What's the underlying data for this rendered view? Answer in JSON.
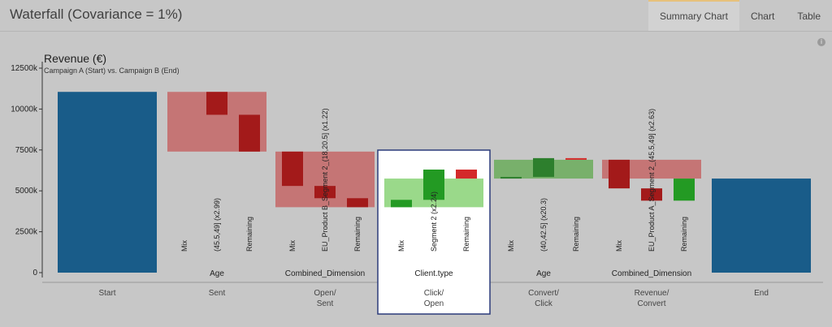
{
  "header": {
    "title": "Waterfall (Covariance = 1%)",
    "tabs": [
      "Summary Chart",
      "Chart",
      "Table"
    ],
    "active_tab": 0
  },
  "chart_data": {
    "type": "bar",
    "title": "Revenue (€)",
    "subtitle": "Campaign A (Start) vs. Campaign B (End)",
    "y_ticks": [
      "0",
      "2500k",
      "5000k",
      "7500k",
      "10000k",
      "12500k"
    ],
    "ylim": [
      0,
      12500
    ],
    "colors": {
      "total": "#195c89",
      "decrease_box": "#c57575",
      "decrease": "#a31a1a",
      "decrease_bright": "#d42a2a",
      "increase_box": "#9ad98a",
      "increase": "#239a23",
      "increase_box_muted": "#78b06b",
      "increase_muted": "#2d7f2d"
    },
    "categories": [
      {
        "label": "Start"
      },
      {
        "label": "Sent",
        "dimension": "Age"
      },
      {
        "label": "Open/ Sent",
        "dimension": "Combined_Dimension"
      },
      {
        "label": "Click/ Open",
        "dimension": "Client.type",
        "highlighted": true
      },
      {
        "label": "Convert/ Click",
        "dimension": "Age"
      },
      {
        "label": "Revenue/ Convert",
        "dimension": "Combined_Dimension"
      },
      {
        "label": "End"
      }
    ],
    "totals": [
      {
        "category": 0,
        "value": 11050
      },
      {
        "category": 6,
        "value": 5750
      }
    ],
    "steps": [
      {
        "category": 1,
        "from": 11050,
        "to": 7400,
        "effect": "decrease",
        "components": [
          {
            "label": "Mix",
            "from": 11050,
            "to": 11050,
            "effect": "decrease"
          },
          {
            "label": "(45.5,49] (x2.99)",
            "from": 11050,
            "to": 9650,
            "effect": "decrease"
          },
          {
            "label": "Remaining",
            "from": 9650,
            "to": 7400,
            "effect": "decrease"
          }
        ]
      },
      {
        "category": 2,
        "from": 7400,
        "to": 4000,
        "effect": "decrease",
        "components": [
          {
            "label": "Mix",
            "from": 7400,
            "to": 5300,
            "effect": "decrease"
          },
          {
            "label": "EU_Product B_Segment 2_(18,20.5] (x1.22)",
            "from": 5300,
            "to": 4550,
            "effect": "decrease"
          },
          {
            "label": "Remaining",
            "from": 4550,
            "to": 4000,
            "effect": "decrease"
          }
        ]
      },
      {
        "category": 3,
        "from": 4000,
        "to": 5750,
        "effect": "increase",
        "components": [
          {
            "label": "Mix",
            "from": 4000,
            "to": 4450,
            "effect": "increase"
          },
          {
            "label": "Segment 2 (x2.24)",
            "from": 4450,
            "to": 6300,
            "effect": "increase"
          },
          {
            "label": "Remaining",
            "from": 6300,
            "to": 5750,
            "effect": "decrease"
          }
        ]
      },
      {
        "category": 4,
        "from": 5750,
        "to": 6900,
        "effect": "increase",
        "components": [
          {
            "label": "Mix",
            "from": 5750,
            "to": 5850,
            "effect": "increase"
          },
          {
            "label": "(40,42.5] (x20.3)",
            "from": 5850,
            "to": 7000,
            "effect": "increase"
          },
          {
            "label": "Remaining",
            "from": 7000,
            "to": 6900,
            "effect": "decrease"
          }
        ]
      },
      {
        "category": 5,
        "from": 6900,
        "to": 5750,
        "effect": "decrease",
        "components": [
          {
            "label": "Mix",
            "from": 6900,
            "to": 5150,
            "effect": "decrease"
          },
          {
            "label": "EU_Product A_Segment 2_(45.5,49] (x2.63)",
            "from": 5150,
            "to": 4400,
            "effect": "decrease"
          },
          {
            "label": "Remaining",
            "from": 4400,
            "to": 5750,
            "effect": "increase"
          }
        ]
      }
    ]
  }
}
